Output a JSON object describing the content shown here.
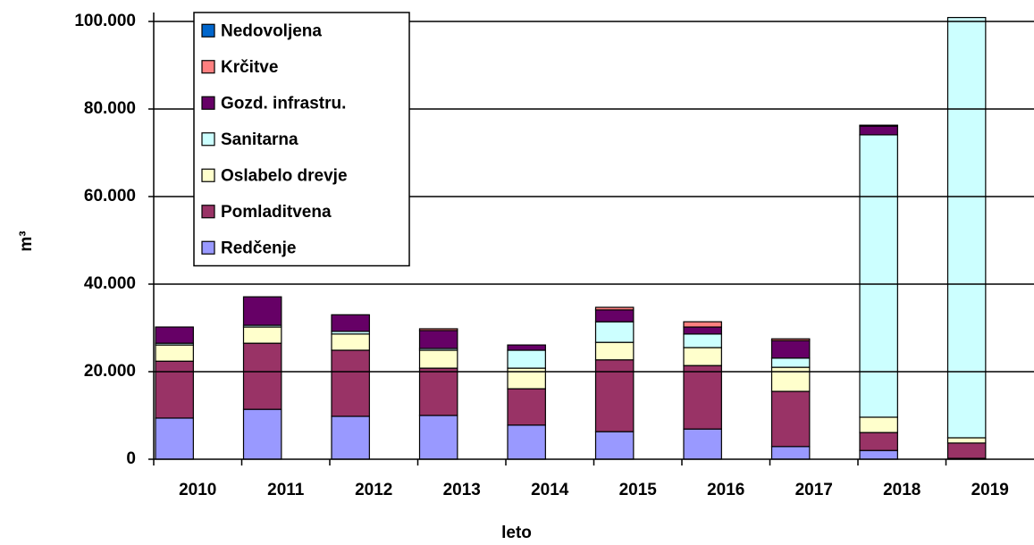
{
  "chart_data": {
    "type": "stacked_bar",
    "x_label": "leto",
    "y_label": "m³",
    "categories": [
      "2010",
      "2011",
      "2012",
      "2013",
      "2014",
      "2015",
      "2016",
      "2017",
      "2018",
      "2019"
    ],
    "series": [
      {
        "name": "Redčenje",
        "color": "#9999ff",
        "values": [
          9400,
          11400,
          9800,
          10000,
          7800,
          6300,
          6900,
          2900,
          2000,
          200
        ]
      },
      {
        "name": "Pomladitvena",
        "color": "#993366",
        "values": [
          13000,
          15100,
          15100,
          10800,
          8300,
          16400,
          14500,
          12600,
          4100,
          3500
        ]
      },
      {
        "name": "Oslabelo drevje",
        "color": "#ffffcc",
        "values": [
          3700,
          3700,
          3700,
          4100,
          4700,
          4000,
          4100,
          5500,
          3500,
          1200
        ]
      },
      {
        "name": "Sanitarna",
        "color": "#ccffff",
        "values": [
          400,
          400,
          600,
          400,
          4100,
          4700,
          3100,
          2100,
          64500,
          96000
        ]
      },
      {
        "name": "Gozd. infrastru.",
        "color": "#660066",
        "values": [
          3700,
          6500,
          3800,
          4100,
          1200,
          2700,
          1600,
          4000,
          2000,
          0
        ]
      },
      {
        "name": "Krčitve",
        "color": "#ff8080",
        "values": [
          0,
          0,
          0,
          400,
          0,
          600,
          1200,
          400,
          200,
          0
        ]
      },
      {
        "name": "Nedovoljena",
        "color": "#0066cc",
        "values": [
          0,
          0,
          0,
          0,
          0,
          0,
          0,
          0,
          0,
          0
        ]
      }
    ],
    "ylim": [
      0,
      100000
    ],
    "yticks": [
      0,
      {
        "value": 20000,
        "label": "20.000"
      },
      {
        "value": 40000,
        "label": "40.000"
      },
      {
        "value": 60000,
        "label": "60.000"
      },
      {
        "value": 80000,
        "label": "80.000"
      },
      {
        "value": 100000,
        "label": "100.000"
      }
    ],
    "grid": true,
    "legend": "upper left"
  }
}
